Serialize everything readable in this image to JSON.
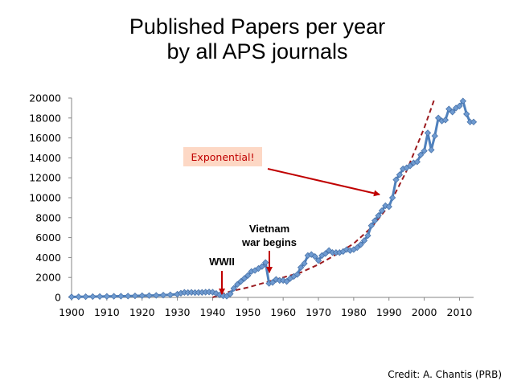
{
  "chart_data": {
    "type": "line",
    "title_lines": [
      "Published Papers per year",
      "by all APS journals"
    ],
    "xlim": [
      1900,
      2014
    ],
    "ylim": [
      0,
      20000
    ],
    "xticks": [
      1900,
      1910,
      1920,
      1930,
      1940,
      1950,
      1960,
      1970,
      1980,
      1990,
      2000,
      2010
    ],
    "yticks": [
      0,
      2000,
      4000,
      6000,
      8000,
      10000,
      12000,
      14000,
      16000,
      18000,
      20000
    ],
    "grid": false,
    "series": [
      {
        "style": "line-with-diamond-markers",
        "color": "#4f81bd",
        "x": [
          1900,
          1902,
          1904,
          1906,
          1908,
          1910,
          1912,
          1914,
          1916,
          1918,
          1920,
          1922,
          1924,
          1926,
          1928,
          1930,
          1931,
          1932,
          1933,
          1934,
          1935,
          1936,
          1937,
          1938,
          1939,
          1940,
          1941,
          1942,
          1943,
          1944,
          1945,
          1946,
          1947,
          1948,
          1949,
          1950,
          1951,
          1952,
          1953,
          1954,
          1955,
          1956,
          1957,
          1958,
          1959,
          1960,
          1961,
          1962,
          1963,
          1964,
          1965,
          1966,
          1967,
          1968,
          1969,
          1970,
          1971,
          1972,
          1973,
          1974,
          1975,
          1976,
          1977,
          1978,
          1979,
          1980,
          1981,
          1982,
          1983,
          1984,
          1985,
          1986,
          1987,
          1988,
          1989,
          1990,
          1991,
          1992,
          1993,
          1994,
          1995,
          1996,
          1997,
          1998,
          1999,
          2000,
          2001,
          2002,
          2003,
          2004,
          2005,
          2006,
          2007,
          2008,
          2009,
          2010,
          2011,
          2012,
          2013,
          2014
        ],
        "y": [
          50,
          60,
          70,
          80,
          90,
          100,
          110,
          120,
          130,
          150,
          170,
          180,
          200,
          230,
          260,
          320,
          420,
          500,
          480,
          500,
          480,
          490,
          500,
          520,
          540,
          520,
          400,
          250,
          150,
          120,
          350,
          900,
          1300,
          1600,
          1900,
          2200,
          2600,
          2700,
          2900,
          3100,
          3500,
          1400,
          1500,
          1800,
          1700,
          1700,
          1600,
          1900,
          2100,
          2300,
          3000,
          3400,
          4200,
          4300,
          4100,
          3700,
          4200,
          4400,
          4700,
          4500,
          4500,
          4500,
          4600,
          4800,
          4700,
          4800,
          5000,
          5300,
          5700,
          6200,
          7200,
          7700,
          8200,
          8700,
          9200,
          9100,
          10000,
          11800,
          12300,
          12900,
          13000,
          13200,
          13500,
          13600,
          14300,
          14700,
          16500,
          14800,
          16200,
          18000,
          17700,
          17800,
          18900,
          18600,
          19000,
          19200,
          19700,
          18400,
          17600,
          17600
        ]
      },
      {
        "style": "dashed",
        "color": "#9b1b1f",
        "x": [
          1940,
          1945,
          1950,
          1955,
          1960,
          1965,
          1970,
          1975,
          1980,
          1985,
          1990,
          1995,
          2000,
          2003
        ],
        "y": [
          0,
          600,
          1000,
          1500,
          2000,
          2500,
          3300,
          4300,
          5400,
          7000,
          9200,
          12700,
          17000,
          20000
        ]
      }
    ],
    "annotations": {
      "exponential": "Exponential!",
      "wwii": "WWII",
      "vietnam_line1": "Vietnam",
      "vietnam_line2": "war begins"
    },
    "arrow_color": "#c00000",
    "annotation_box_fill": "#fdd8c5"
  },
  "credit": "Credit: A. Chantis (PRB)"
}
